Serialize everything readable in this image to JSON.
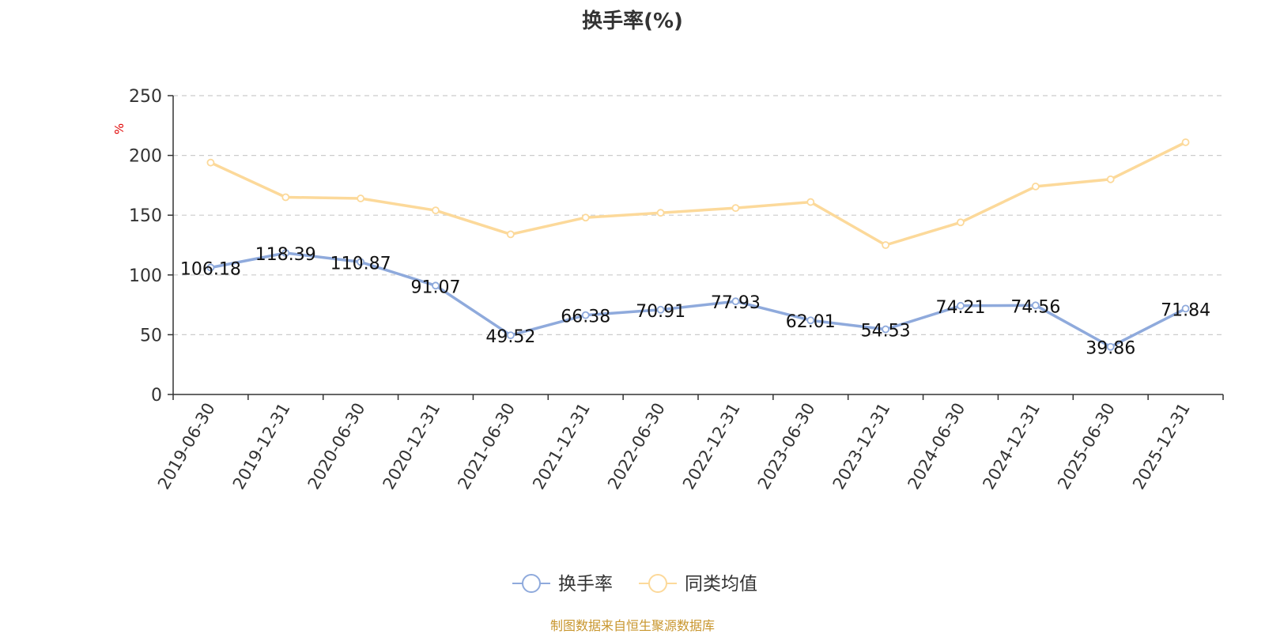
{
  "chart_data": {
    "type": "line",
    "title": "换手率(%)",
    "ylabel": "%",
    "xlabel": "",
    "ylim": [
      0,
      250
    ],
    "yticks": [
      0,
      50,
      100,
      150,
      200,
      250
    ],
    "grid": true,
    "legend_position": "bottom-center",
    "categories": [
      "2019-06-30",
      "2019-12-31",
      "2020-06-30",
      "2020-12-31",
      "2021-06-30",
      "2021-12-31",
      "2022-06-30",
      "2022-12-31",
      "2023-06-30",
      "2023-12-31",
      "2024-06-30",
      "2024-12-31",
      "2025-06-30",
      "2025-12-31"
    ],
    "series": [
      {
        "name": "换手率",
        "color": "#8faadc",
        "labeled": true,
        "values": [
          106.18,
          118.39,
          110.87,
          91.07,
          49.52,
          66.38,
          70.91,
          77.93,
          62.01,
          54.53,
          74.21,
          74.56,
          39.86,
          71.84
        ]
      },
      {
        "name": "同类均值",
        "color": "#fcd99a",
        "labeled": false,
        "values": [
          194,
          165,
          164,
          154,
          134,
          148,
          152,
          156,
          161,
          125,
          144,
          174,
          180,
          211
        ]
      }
    ]
  },
  "source_note": "制图数据来自恒生聚源数据库",
  "colors": {
    "axis": "#333333",
    "grid": "#cccccc",
    "ylabel": "#e00000",
    "source": "#c8962e"
  }
}
